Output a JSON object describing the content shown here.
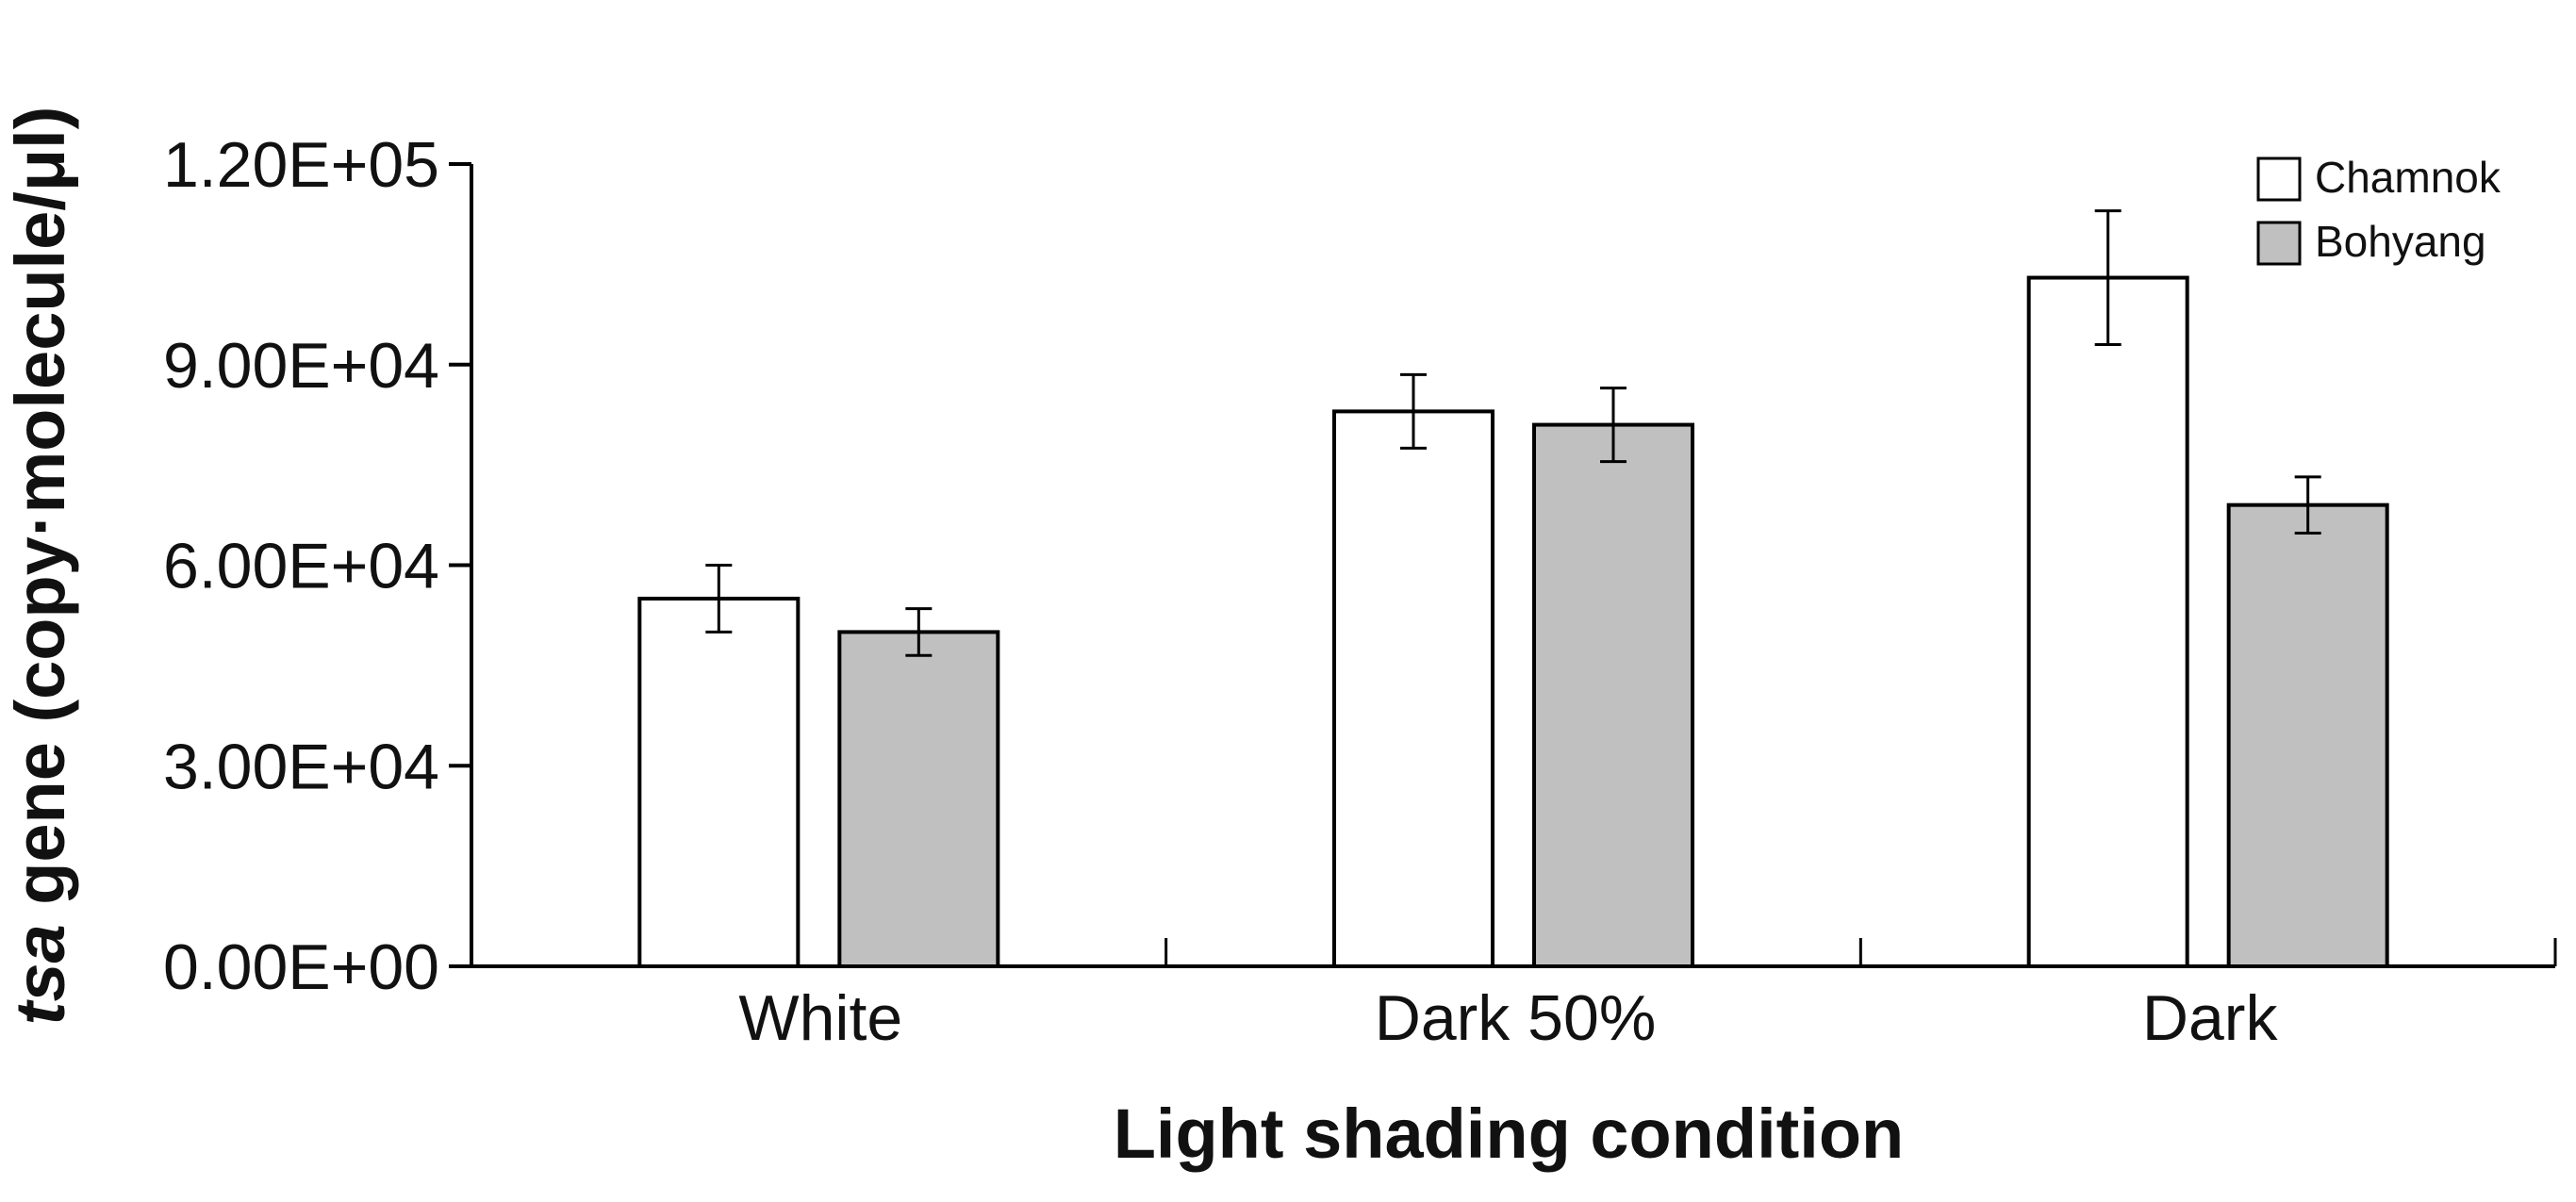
{
  "chart_data": {
    "type": "bar",
    "title": "",
    "xlabel": "Light shading condition",
    "ylabel_italic": "tsa",
    "ylabel_rest": " gene (copy·molecule/μl)",
    "categories": [
      "White",
      "Dark 50%",
      "Dark"
    ],
    "series": [
      {
        "name": "Chamnok",
        "color": "#ffffff",
        "values": [
          55000,
          83000,
          103000
        ],
        "errors": [
          5000,
          5500,
          10000
        ]
      },
      {
        "name": "Bohyang",
        "color": "#c0c0c0",
        "values": [
          50000,
          81000,
          69000
        ],
        "errors": [
          3500,
          5500,
          4200
        ]
      }
    ],
    "yticks": [
      0,
      30000,
      60000,
      90000,
      120000
    ],
    "ytick_labels": [
      "0.00E+00",
      "3.00E+04",
      "6.00E+04",
      "9.00E+04",
      "1.20E+05"
    ],
    "ylim": [
      0,
      120000
    ],
    "grid": false,
    "legend_position": "top-right"
  }
}
